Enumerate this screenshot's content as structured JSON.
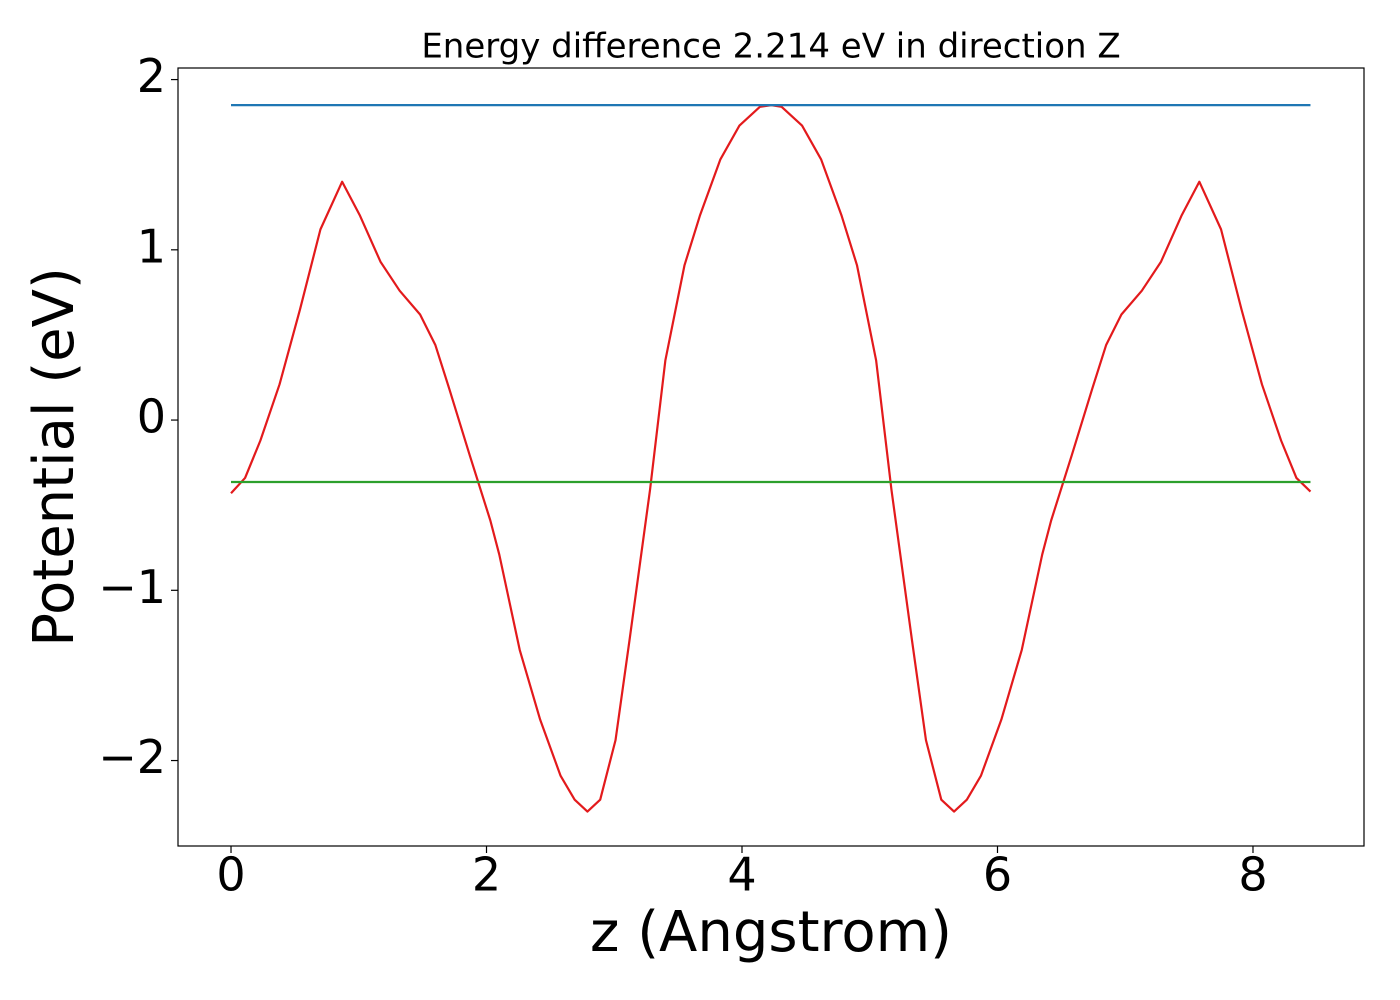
{
  "chart_data": {
    "type": "line",
    "title": "Energy difference 2.214 eV in direction Z",
    "xlabel": "z (Angstrom)",
    "ylabel": "Potential (eV)",
    "xlim": [
      -0.415,
      8.869
    ],
    "ylim": [
      -2.502,
      2.068
    ],
    "xticks": [
      0,
      2,
      4,
      6,
      8
    ],
    "yticks": [
      {
        "value": -2,
        "label": "−2"
      },
      {
        "value": -1,
        "label": "−1"
      },
      0,
      1,
      2
    ],
    "series": [
      {
        "color": "#e31a1c",
        "x": [
          0,
          0.11,
          0.23,
          0.38,
          0.54,
          0.7,
          0.87,
          1.01,
          1.17,
          1.32,
          1.48,
          1.6,
          1.71,
          1.87,
          2.03,
          2.1,
          2.26,
          2.42,
          2.58,
          2.69,
          2.79,
          2.89,
          3.01,
          3.12,
          3.28,
          3.4,
          3.55,
          3.67,
          3.83,
          3.98,
          4.14,
          4.23,
          4.31,
          4.47,
          4.62,
          4.78,
          4.9,
          5.05,
          5.17,
          5.33,
          5.44,
          5.56,
          5.66,
          5.76,
          5.87,
          6.03,
          6.19,
          6.35,
          6.42,
          6.58,
          6.74,
          6.85,
          6.97,
          7.13,
          7.28,
          7.44,
          7.58,
          7.75,
          7.91,
          8.07,
          8.22,
          8.34,
          8.45
        ],
        "values": [
          -0.43,
          -0.34,
          -0.12,
          0.21,
          0.65,
          1.12,
          1.4,
          1.2,
          0.93,
          0.76,
          0.62,
          0.44,
          0.18,
          -0.21,
          -0.59,
          -0.79,
          -1.35,
          -1.76,
          -2.09,
          -2.23,
          -2.3,
          -2.23,
          -1.88,
          -1.29,
          -0.41,
          0.35,
          0.91,
          1.2,
          1.53,
          1.73,
          1.84,
          1.85,
          1.84,
          1.73,
          1.53,
          1.2,
          0.91,
          0.35,
          -0.41,
          -1.29,
          -1.88,
          -2.23,
          -2.3,
          -2.23,
          -2.09,
          -1.76,
          -1.35,
          -0.79,
          -0.59,
          -0.21,
          0.18,
          0.44,
          0.62,
          0.76,
          0.93,
          1.2,
          1.4,
          1.12,
          0.65,
          0.21,
          -0.12,
          -0.34,
          -0.42
        ]
      },
      {
        "color": "#1f77b4",
        "x": [
          0,
          8.45
        ],
        "values": [
          1.85,
          1.85
        ]
      },
      {
        "color": "#2ca02c",
        "x": [
          0,
          8.45
        ],
        "values": [
          -0.364,
          -0.364
        ]
      }
    ]
  }
}
